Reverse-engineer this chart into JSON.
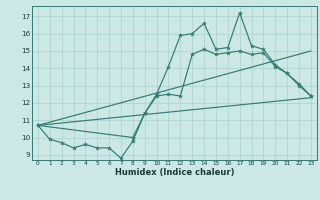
{
  "title": "",
  "xlabel": "Humidex (Indice chaleur)",
  "bg_color": "#cce8e4",
  "line_color": "#2e7d72",
  "grid_color": "#b0d4d0",
  "xlim": [
    -0.5,
    23.5
  ],
  "ylim": [
    8.7,
    17.6
  ],
  "xticks": [
    0,
    1,
    2,
    3,
    4,
    5,
    6,
    7,
    8,
    9,
    10,
    11,
    12,
    13,
    14,
    15,
    16,
    17,
    18,
    19,
    20,
    21,
    22,
    23
  ],
  "yticks": [
    9,
    10,
    11,
    12,
    13,
    14,
    15,
    16,
    17
  ],
  "line_max": [
    [
      0,
      10.7
    ],
    [
      1,
      9.9
    ],
    [
      2,
      9.7
    ],
    [
      3,
      9.4
    ],
    [
      4,
      9.6
    ],
    [
      5,
      9.4
    ],
    [
      6,
      9.4
    ],
    [
      7,
      8.8
    ],
    [
      8,
      9.8
    ],
    [
      9,
      11.4
    ],
    [
      10,
      12.5
    ],
    [
      11,
      14.1
    ],
    [
      12,
      15.9
    ],
    [
      13,
      16.0
    ],
    [
      14,
      16.6
    ],
    [
      15,
      15.1
    ],
    [
      16,
      15.2
    ],
    [
      17,
      17.2
    ],
    [
      18,
      15.3
    ],
    [
      19,
      15.1
    ],
    [
      20,
      14.2
    ],
    [
      21,
      13.7
    ],
    [
      22,
      13.1
    ],
    [
      23,
      12.4
    ]
  ],
  "line_mid": [
    [
      0,
      10.7
    ],
    [
      8,
      10.0
    ],
    [
      9,
      11.4
    ],
    [
      10,
      12.4
    ],
    [
      11,
      12.5
    ],
    [
      12,
      12.4
    ],
    [
      13,
      14.8
    ],
    [
      14,
      15.1
    ],
    [
      15,
      14.8
    ],
    [
      16,
      14.9
    ],
    [
      17,
      15.0
    ],
    [
      18,
      14.8
    ],
    [
      19,
      14.9
    ],
    [
      20,
      14.1
    ],
    [
      21,
      13.7
    ],
    [
      22,
      13.0
    ],
    [
      23,
      12.4
    ]
  ],
  "line_trend_upper": [
    [
      0,
      10.7
    ],
    [
      23,
      15.0
    ]
  ],
  "line_trend_lower": [
    [
      0,
      10.7
    ],
    [
      23,
      12.3
    ]
  ]
}
